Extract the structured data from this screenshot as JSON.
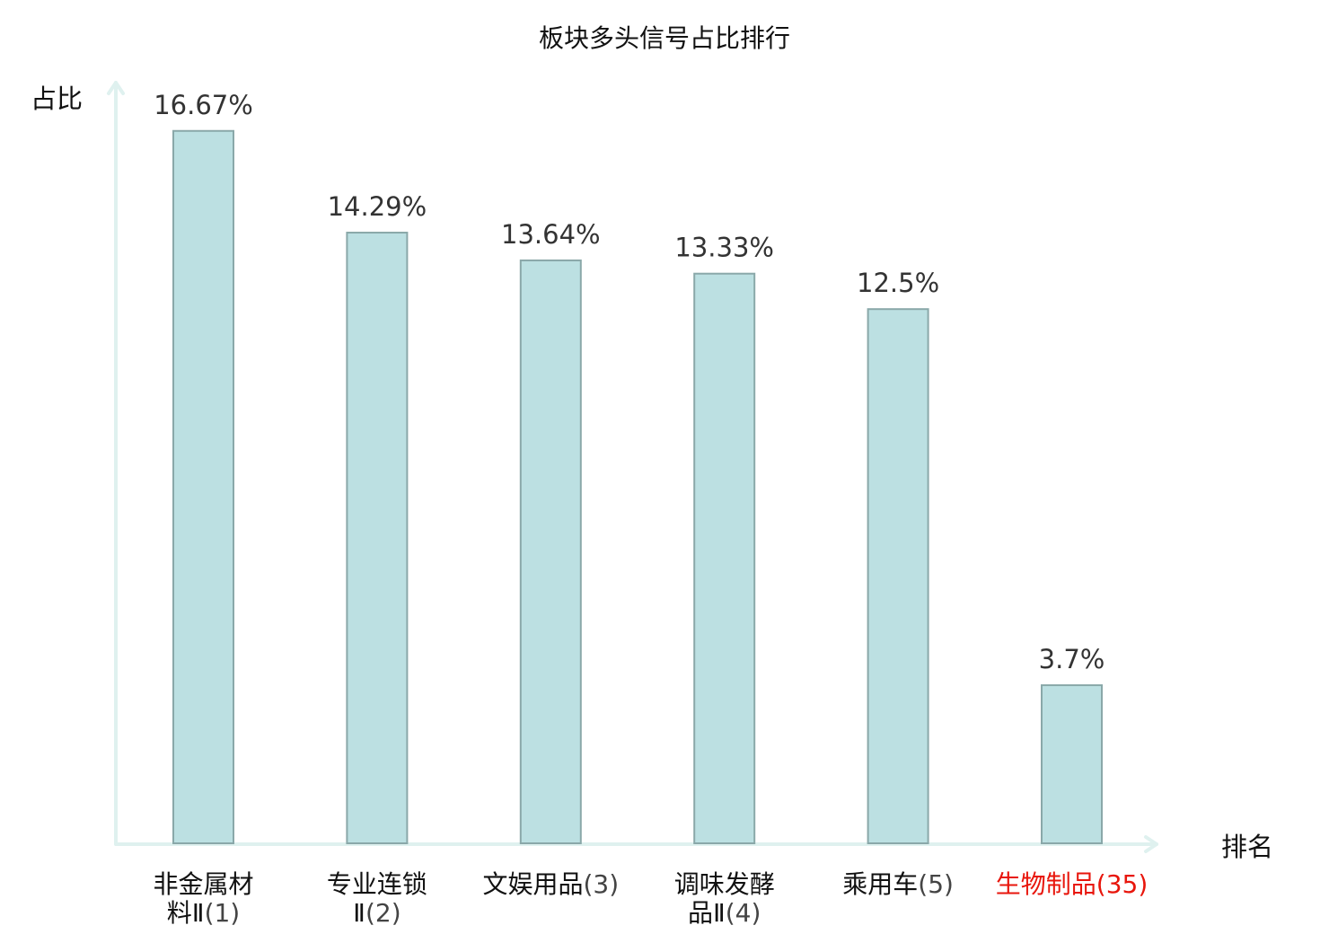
{
  "chart_data": {
    "type": "bar",
    "title": "板块多头信号占比排行",
    "ylabel": "占比",
    "xlabel": "排名",
    "ylim": [
      0,
      17.8
    ],
    "grid": false,
    "categories": [
      {
        "name_lines": [
          "非金属材",
          "料Ⅱ"
        ],
        "rank": "(1)"
      },
      {
        "name_lines": [
          "专业连锁",
          "Ⅱ"
        ],
        "rank": "(2)"
      },
      {
        "name_lines": [
          "文娱用品"
        ],
        "rank": "(3)"
      },
      {
        "name_lines": [
          "调味发酵",
          "品Ⅱ"
        ],
        "rank": "(4)"
      },
      {
        "name_lines": [
          "乘用车"
        ],
        "rank": "(5)"
      },
      {
        "name_lines": [
          "生物制品"
        ],
        "rank": "(35)",
        "highlight": true
      }
    ],
    "values": [
      16.67,
      14.29,
      13.64,
      13.33,
      12.5,
      3.7
    ],
    "value_labels": [
      "16.67%",
      "14.29%",
      "13.64%",
      "13.33%",
      "12.5%",
      "3.7%"
    ],
    "colors": {
      "bar": "#bce0e2",
      "bar_border": "#8aa8a9",
      "axis": "#dff1ef",
      "highlight_label": "#e8160c"
    }
  }
}
